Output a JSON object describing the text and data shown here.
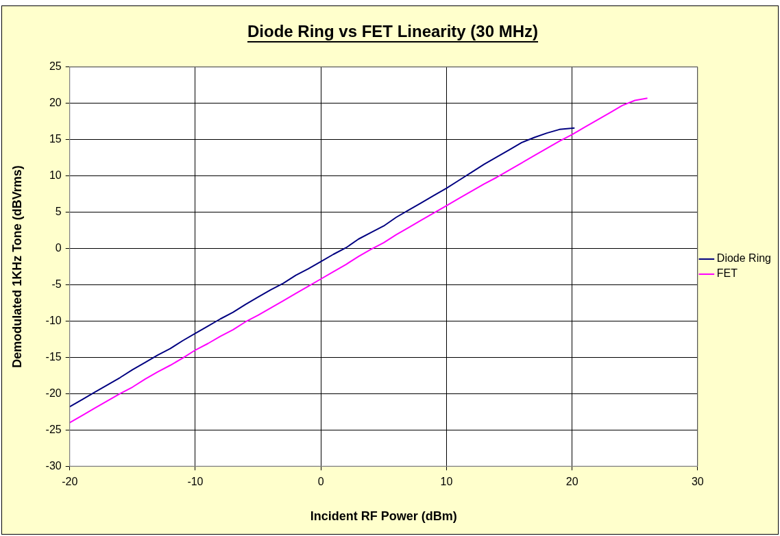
{
  "chart_data": {
    "type": "line",
    "title": "Diode Ring vs FET Linearity (30 MHz)",
    "xlabel": "Incident RF Power (dBm)",
    "ylabel": "Demodulated 1KHz Tone (dBVrms)",
    "xlim": [
      -20,
      30
    ],
    "xticks": [
      -20,
      -10,
      0,
      10,
      20,
      30
    ],
    "ylim": [
      -30,
      25
    ],
    "yticks": [
      -30,
      -25,
      -20,
      -15,
      -10,
      -5,
      0,
      5,
      10,
      15,
      20,
      25
    ],
    "grid": true,
    "legend": "right",
    "marker": "none",
    "line_style": "solid",
    "series": [
      {
        "name": "Diode Ring",
        "color": "#000080",
        "x": [
          -20,
          -19,
          -18,
          -17,
          -16,
          -15,
          -14,
          -13,
          -12,
          -11,
          -10,
          -9,
          -8,
          -7,
          -6,
          -5,
          -4,
          -3,
          -2,
          -1,
          0,
          1,
          2,
          3,
          4,
          5,
          6,
          7,
          8,
          9,
          10,
          11,
          12,
          13,
          14,
          15,
          16,
          17,
          18,
          19,
          20.2
        ],
        "values": [
          -21.8,
          -20.8,
          -19.8,
          -18.8,
          -17.8,
          -16.7,
          -15.7,
          -14.7,
          -13.8,
          -12.7,
          -11.7,
          -10.7,
          -9.7,
          -8.8,
          -7.7,
          -6.7,
          -5.7,
          -4.8,
          -3.7,
          -2.8,
          -1.8,
          -0.8,
          0.1,
          1.3,
          2.2,
          3.1,
          4.3,
          5.3,
          6.3,
          7.3,
          8.3,
          9.4,
          10.5,
          11.6,
          12.6,
          13.6,
          14.6,
          15.3,
          15.9,
          16.4,
          16.6
        ]
      },
      {
        "name": "FET",
        "color": "#ff00ff",
        "x": [
          -20,
          -19,
          -18,
          -17,
          -16,
          -15,
          -14,
          -13,
          -12,
          -11,
          -10,
          -9,
          -8,
          -7,
          -6,
          -5,
          -4,
          -3,
          -2,
          -1,
          0,
          1,
          2,
          3,
          4,
          5,
          6,
          7,
          8,
          9,
          10,
          11,
          12,
          13,
          14,
          15,
          16,
          17,
          18,
          19,
          20,
          21,
          22,
          23,
          24,
          25,
          26
        ],
        "values": [
          -24.0,
          -23.0,
          -22.0,
          -21.0,
          -20.0,
          -19.1,
          -18.0,
          -17.0,
          -16.1,
          -15.1,
          -14.0,
          -13.1,
          -12.1,
          -11.2,
          -10.1,
          -9.2,
          -8.2,
          -7.2,
          -6.2,
          -5.2,
          -4.2,
          -3.2,
          -2.2,
          -1.1,
          -0.1,
          0.8,
          1.9,
          2.9,
          3.9,
          4.9,
          5.9,
          6.9,
          7.9,
          8.9,
          9.8,
          10.8,
          11.8,
          12.8,
          13.8,
          14.8,
          15.7,
          16.7,
          17.7,
          18.7,
          19.7,
          20.4,
          20.7
        ]
      }
    ]
  }
}
